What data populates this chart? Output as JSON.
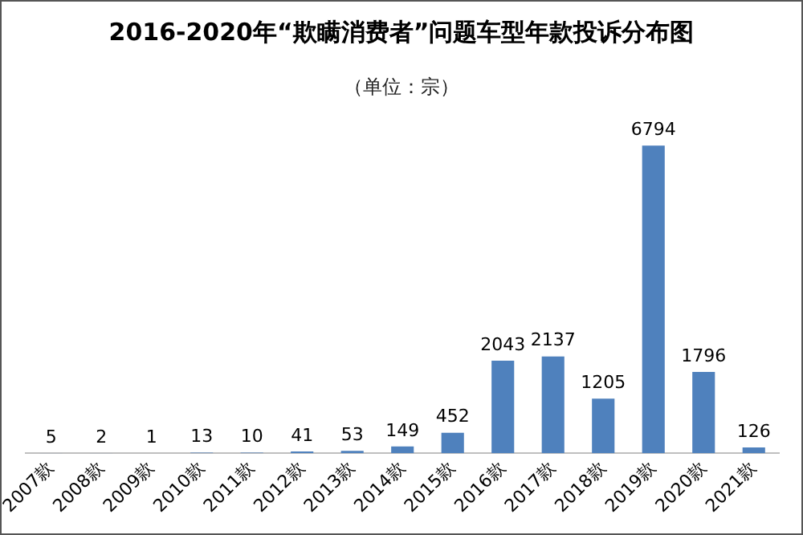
{
  "chart_data": {
    "type": "bar",
    "title": "2016-2020年“欺瞒消费者”问题车型年款投诉分布图",
    "subtitle": "（单位：宗）",
    "categories": [
      "2007款",
      "2008款",
      "2009款",
      "2010款",
      "2011款",
      "2012款",
      "2013款",
      "2014款",
      "2015款",
      "2016款",
      "2017款",
      "2018款",
      "2019款",
      "2020款",
      "2021款"
    ],
    "values": [
      5,
      2,
      1,
      13,
      10,
      41,
      53,
      149,
      452,
      2043,
      2137,
      1205,
      6794,
      1796,
      126
    ],
    "color": "#4f81bd",
    "data_labels": true,
    "grid": false,
    "legend": false
  }
}
